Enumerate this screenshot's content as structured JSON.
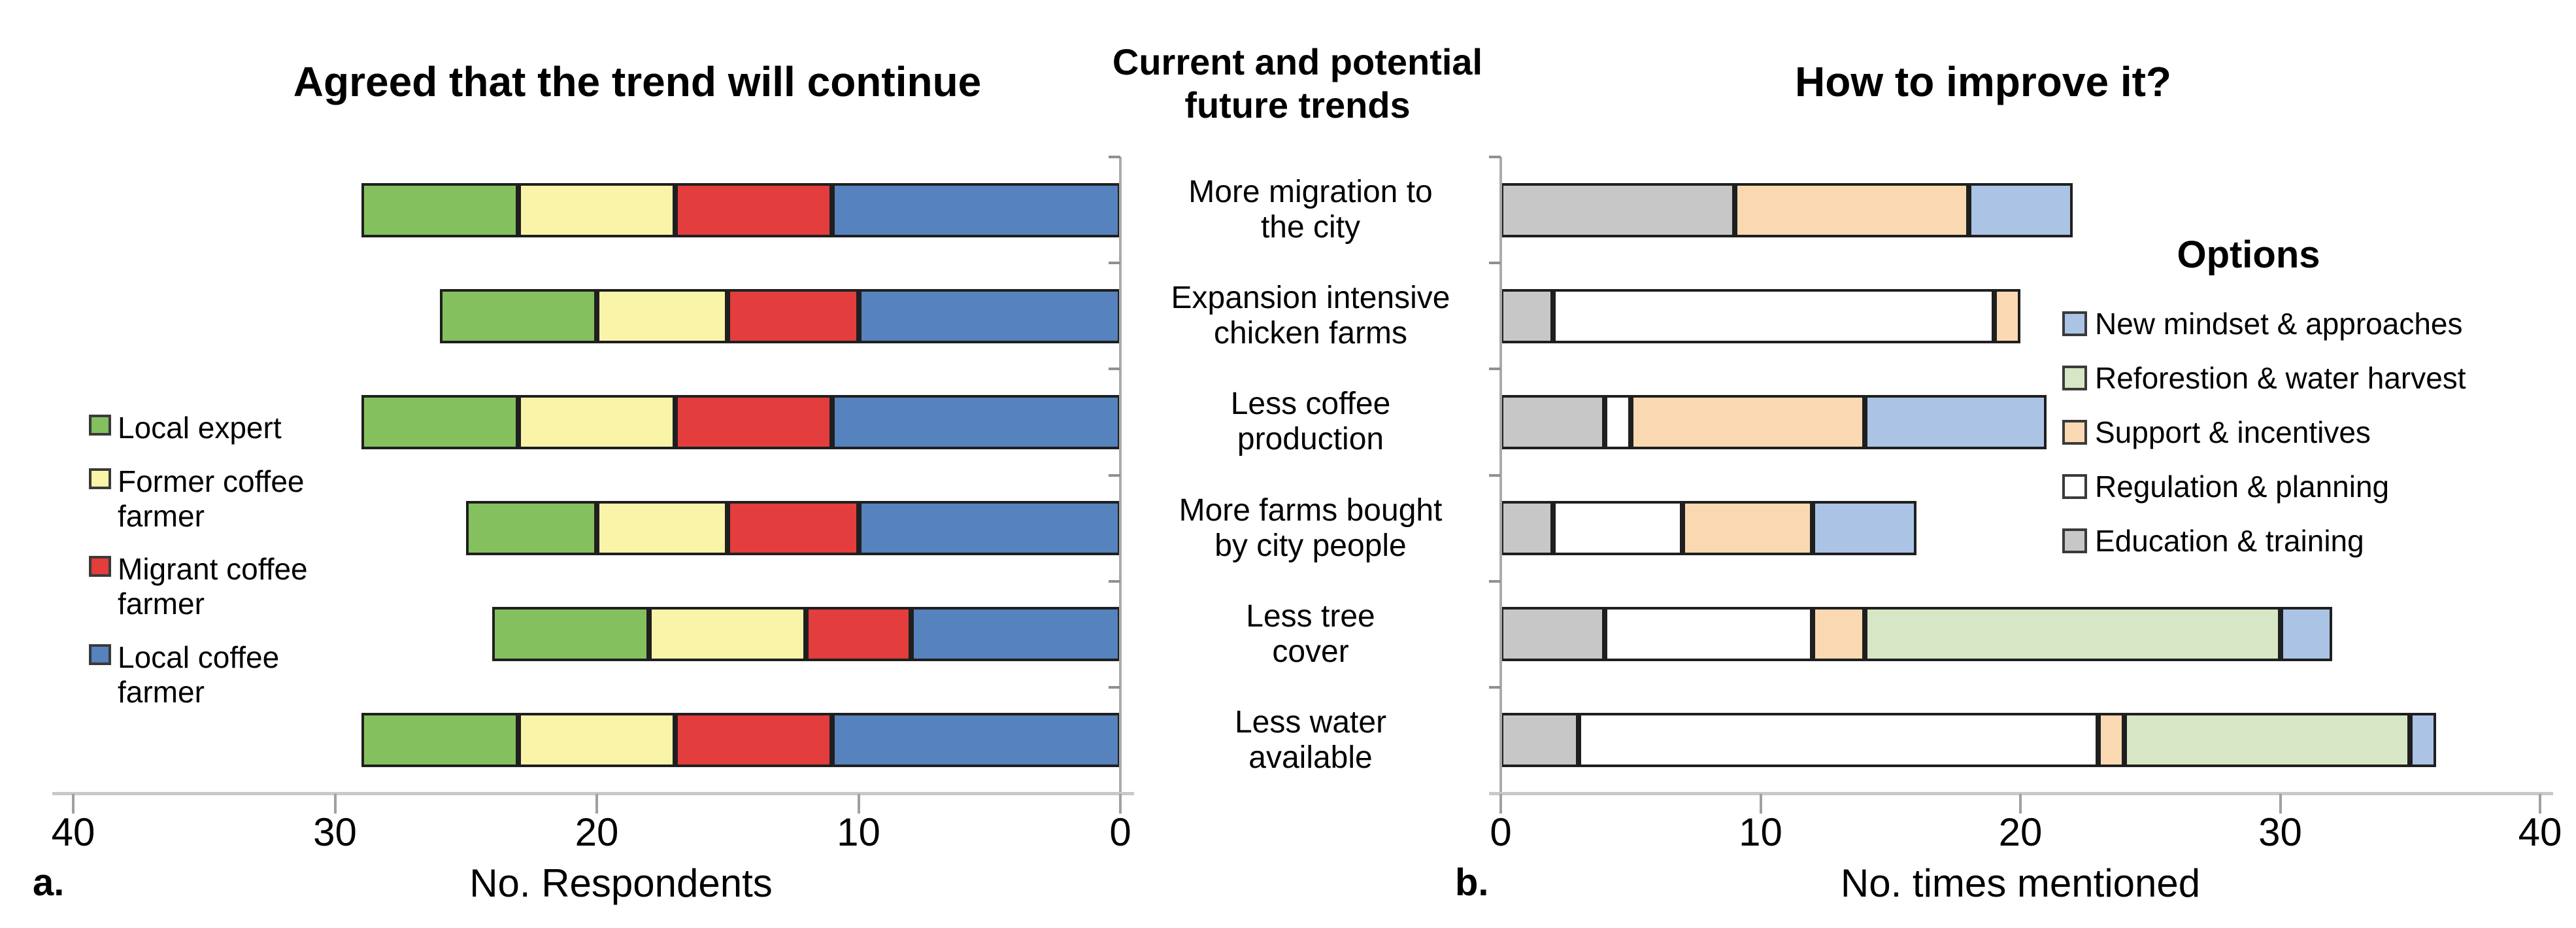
{
  "panel_a": {
    "label": "a.",
    "title": "Agreed that the trend will continue",
    "xlabel": "No. Respondents",
    "tick_labels": [
      "40",
      "30",
      "20",
      "10",
      "0"
    ]
  },
  "panel_b": {
    "label": "b.",
    "title": "How to improve it?",
    "xlabel": "No. times mentioned",
    "tick_labels": [
      "0",
      "10",
      "20",
      "30",
      "40"
    ]
  },
  "middle": {
    "title_line1": "Current and potential",
    "title_line2": "future trends",
    "categories": [
      [
        "More migration to",
        "the city"
      ],
      [
        "Expansion intensive",
        "chicken farms"
      ],
      [
        "Less coffee",
        "production"
      ],
      [
        "More farms bought",
        "by city people"
      ],
      [
        "Less tree",
        "cover"
      ],
      [
        "Less water",
        "available"
      ]
    ]
  },
  "legend_a": {
    "items": [
      {
        "label": [
          "Local expert"
        ],
        "color": "#85C05E"
      },
      {
        "label": [
          "Former coffee",
          "farmer"
        ],
        "color": "#FAF4A8"
      },
      {
        "label": [
          "Migrant coffee",
          "farmer"
        ],
        "color": "#E43D3D"
      },
      {
        "label": [
          "Local coffee",
          "farmer"
        ],
        "color": "#5682BE"
      }
    ]
  },
  "legend_b": {
    "title": "Options",
    "items": [
      {
        "label": "New mindset & approaches",
        "color": "#ABC4E5"
      },
      {
        "label": "Reforestion & water harvest",
        "color": "#D7E6C5"
      },
      {
        "label": "Support & incentives",
        "color": "#FAD9B2"
      },
      {
        "label": "Regulation & planning",
        "color": "#FFFFFF"
      },
      {
        "label": "Education & training",
        "color": "#C7C7C7"
      }
    ]
  },
  "chart_data": [
    {
      "id": "a",
      "type": "bar",
      "orientation": "horizontal",
      "direction": "right-to-left",
      "title": "Agreed that the trend will continue",
      "xlabel": "No. Respondents",
      "xlim": [
        40,
        0
      ],
      "xticks": [
        40,
        30,
        20,
        10,
        0
      ],
      "grid": false,
      "legend_position": "left",
      "categories": [
        "More migration to the city",
        "Expansion intensive chicken farms",
        "Less coffee production",
        "More farms bought by city people",
        "Less tree cover",
        "Less water available"
      ],
      "series": [
        {
          "name": "Local expert",
          "color": "#85C05E",
          "values": [
            6,
            6,
            6,
            5,
            6,
            6
          ]
        },
        {
          "name": "Former coffee farmer",
          "color": "#FAF4A8",
          "values": [
            6,
            5,
            6,
            5,
            6,
            6
          ]
        },
        {
          "name": "Migrant coffee farmer",
          "color": "#E43D3D",
          "values": [
            6,
            5,
            6,
            5,
            4,
            6
          ]
        },
        {
          "name": "Local coffee farmer",
          "color": "#5682BE",
          "values": [
            11,
            10,
            11,
            10,
            8,
            11
          ]
        }
      ],
      "totals": [
        29,
        26,
        29,
        25,
        24,
        29
      ]
    },
    {
      "id": "b",
      "type": "bar",
      "orientation": "horizontal",
      "direction": "left-to-right",
      "title": "How to improve it?",
      "xlabel": "No. times mentioned",
      "xlim": [
        0,
        40
      ],
      "xticks": [
        0,
        10,
        20,
        30,
        40
      ],
      "grid": false,
      "legend_position": "right",
      "legend_title": "Options",
      "categories": [
        "More migration to the city",
        "Expansion intensive chicken farms",
        "Less coffee production",
        "More farms bought by city people",
        "Less tree cover",
        "Less water available"
      ],
      "series": [
        {
          "name": "Education & training",
          "color": "#C7C7C7",
          "values": [
            9,
            2,
            4,
            2,
            4,
            3
          ]
        },
        {
          "name": "Regulation & planning",
          "color": "#FFFFFF",
          "values": [
            0,
            17,
            1,
            5,
            8,
            20
          ]
        },
        {
          "name": "Support & incentives",
          "color": "#FAD9B2",
          "values": [
            9,
            1,
            9,
            5,
            2,
            1
          ]
        },
        {
          "name": "Reforestion & water harvest",
          "color": "#D7E6C5",
          "values": [
            0,
            0,
            0,
            0,
            16,
            11
          ]
        },
        {
          "name": "New mindset & approaches",
          "color": "#ABC4E5",
          "values": [
            4,
            0,
            7,
            4,
            2,
            1
          ]
        }
      ],
      "totals": [
        22,
        20,
        21,
        16,
        32,
        36
      ]
    }
  ],
  "style": {
    "bar_border": "#1F1F1F",
    "axis_line": "#C8C8C8",
    "tick_color": "#A0A0A0",
    "background": "#FFFFFF"
  }
}
